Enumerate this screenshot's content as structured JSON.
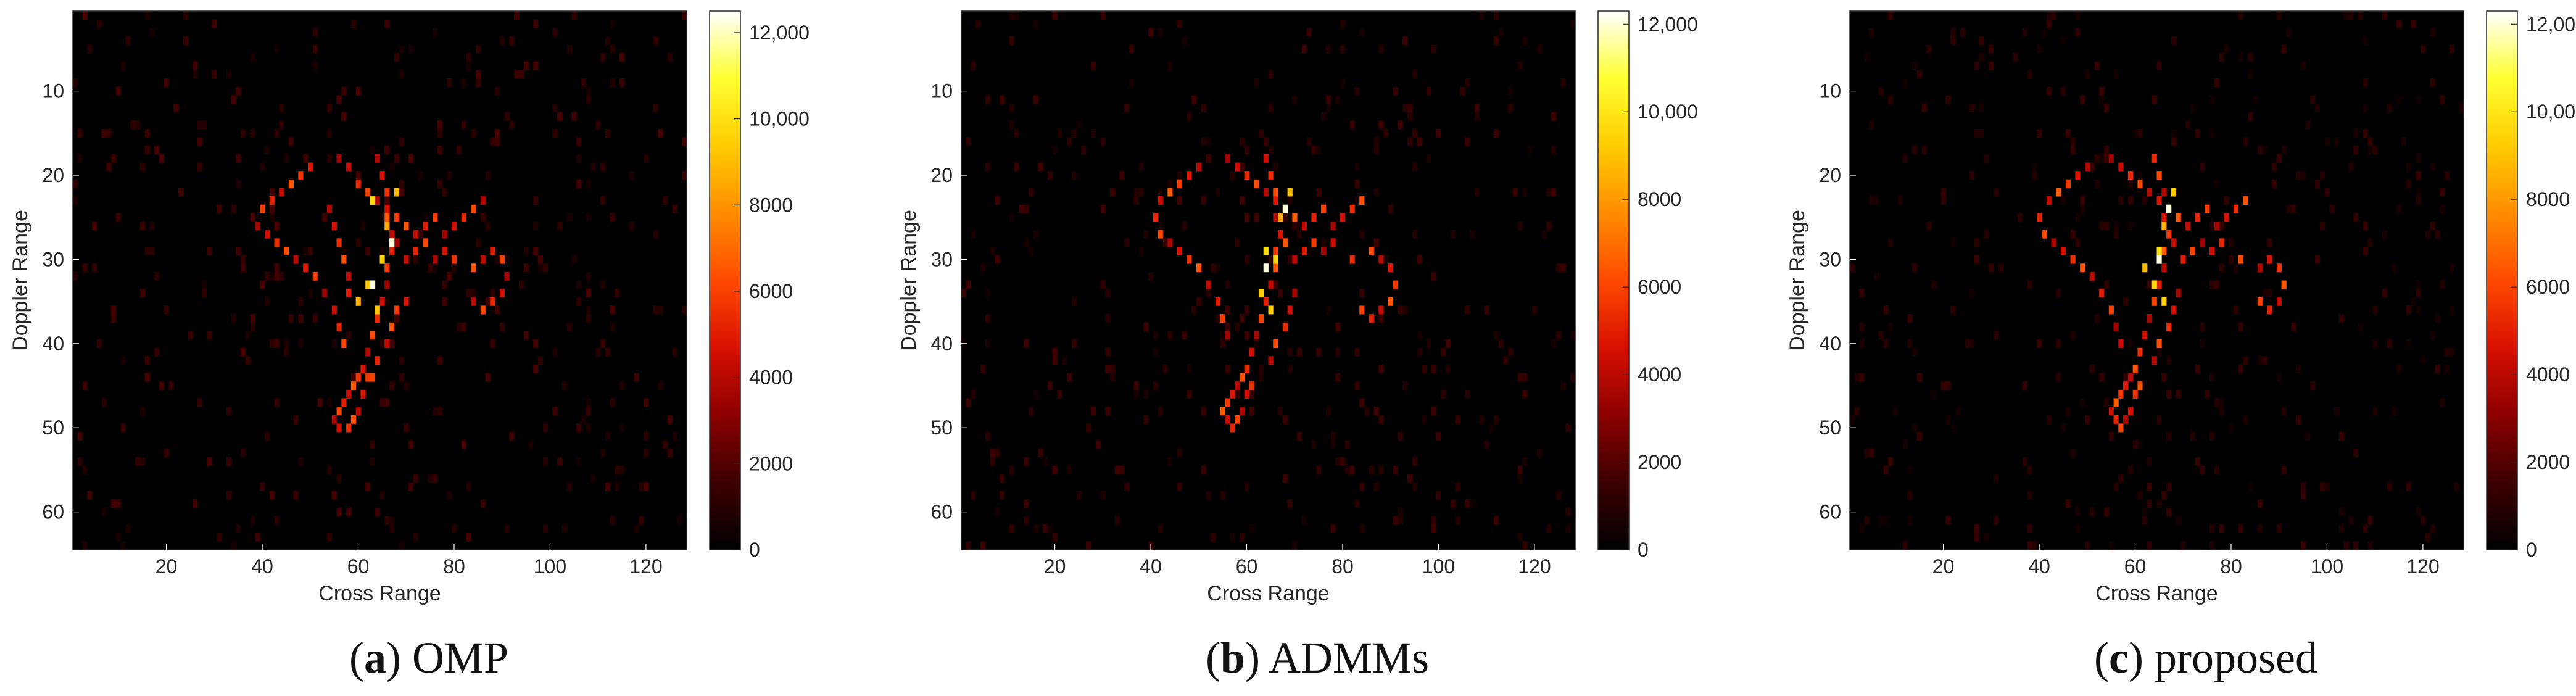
{
  "colormap": [
    "#000000",
    "#3d0000",
    "#8c0000",
    "#d81000",
    "#ff4a00",
    "#ff8c00",
    "#ffcc00",
    "#ffff30",
    "#ffffff"
  ],
  "chart_data": [
    {
      "type": "heatmap",
      "panel": "a",
      "caption_letter": "a",
      "caption_text": "OMP",
      "xlabel": "Cross Range",
      "ylabel": "Doppler Range",
      "xlim": [
        1,
        128
      ],
      "ylim": [
        1,
        64
      ],
      "xticks": [
        20,
        40,
        60,
        80,
        100,
        120
      ],
      "yticks": [
        10,
        20,
        30,
        40,
        50,
        60
      ],
      "colorbar_range": [
        0,
        12500
      ],
      "colorbar_ticks": [
        0,
        2000,
        4000,
        6000,
        8000,
        10000,
        12000
      ],
      "colorbar_tick_labels": [
        "0",
        "2000",
        "4000",
        "6000",
        "8000",
        "10,000",
        "12,000"
      ],
      "background_noise_max": 1800,
      "strong_points": [
        [
          56,
          18
        ],
        [
          58,
          19
        ],
        [
          60,
          21
        ],
        [
          62,
          22
        ],
        [
          64,
          23
        ],
        [
          66,
          24
        ],
        [
          68,
          25
        ],
        [
          70,
          26
        ],
        [
          72,
          27
        ],
        [
          74,
          26
        ],
        [
          76,
          25
        ],
        [
          78,
          27
        ],
        [
          80,
          26
        ],
        [
          82,
          25
        ],
        [
          84,
          24
        ],
        [
          86,
          23
        ],
        [
          50,
          19
        ],
        [
          48,
          20
        ],
        [
          46,
          21
        ],
        [
          44,
          22
        ],
        [
          42,
          23
        ],
        [
          40,
          24
        ],
        [
          39,
          26
        ],
        [
          41,
          27
        ],
        [
          43,
          28
        ],
        [
          45,
          29
        ],
        [
          47,
          30
        ],
        [
          49,
          31
        ],
        [
          51,
          32
        ],
        [
          53,
          34
        ],
        [
          55,
          36
        ],
        [
          56,
          38
        ],
        [
          57,
          40
        ],
        [
          64,
          18
        ],
        [
          65,
          20
        ],
        [
          66,
          22
        ],
        [
          66,
          25
        ],
        [
          67,
          27
        ],
        [
          67,
          29
        ],
        [
          66,
          31
        ],
        [
          66,
          33
        ],
        [
          65,
          35
        ],
        [
          64,
          37
        ],
        [
          63,
          39
        ],
        [
          62,
          41
        ],
        [
          61,
          43
        ],
        [
          60,
          44
        ],
        [
          59,
          45
        ],
        [
          58,
          46
        ],
        [
          57,
          47
        ],
        [
          56,
          48
        ],
        [
          55,
          49
        ],
        [
          56,
          50
        ],
        [
          58,
          50
        ],
        [
          59,
          49
        ],
        [
          60,
          48
        ],
        [
          61,
          46
        ],
        [
          62,
          44
        ],
        [
          68,
          28
        ],
        [
          70,
          30
        ],
        [
          72,
          29
        ],
        [
          74,
          28
        ],
        [
          76,
          30
        ],
        [
          78,
          29
        ],
        [
          80,
          30
        ],
        [
          84,
          31
        ],
        [
          86,
          30
        ],
        [
          88,
          29
        ],
        [
          90,
          30
        ],
        [
          91,
          32
        ],
        [
          90,
          34
        ],
        [
          88,
          35
        ],
        [
          86,
          36
        ],
        [
          84,
          35
        ],
        [
          70,
          35
        ],
        [
          68,
          36
        ],
        [
          67,
          38
        ],
        [
          66,
          40
        ],
        [
          64,
          42
        ],
        [
          63,
          44
        ],
        [
          54,
          24
        ],
        [
          55,
          26
        ],
        [
          56,
          28
        ],
        [
          57,
          30
        ],
        [
          58,
          32
        ],
        [
          58,
          34
        ]
      ],
      "hot_points": [
        [
          66,
          26
        ],
        [
          63,
          23
        ],
        [
          65,
          30
        ],
        [
          62,
          33
        ],
        [
          64,
          36
        ],
        [
          68,
          22
        ],
        [
          60,
          35
        ]
      ],
      "peak_points": [
        [
          63,
          33
        ],
        [
          67,
          28
        ]
      ]
    },
    {
      "type": "heatmap",
      "panel": "b",
      "caption_letter": "b",
      "caption_text": "ADMMs",
      "xlabel": "Cross Range",
      "ylabel": "Doppler Range",
      "xlim": [
        1,
        128
      ],
      "ylim": [
        1,
        64
      ],
      "xticks": [
        20,
        40,
        60,
        80,
        100,
        120
      ],
      "yticks": [
        10,
        20,
        30,
        40,
        50,
        60
      ],
      "colorbar_range": [
        0,
        12300
      ],
      "colorbar_ticks": [
        0,
        2000,
        4000,
        6000,
        8000,
        10000,
        12000
      ],
      "colorbar_tick_labels": [
        "0",
        "2000",
        "4000",
        "6000",
        "8000",
        "10,000",
        "12,000"
      ],
      "background_noise_max": 1600,
      "strong_points": [
        [
          56,
          18
        ],
        [
          58,
          19
        ],
        [
          60,
          20
        ],
        [
          62,
          21
        ],
        [
          64,
          22
        ],
        [
          66,
          23
        ],
        [
          68,
          24
        ],
        [
          70,
          25
        ],
        [
          72,
          26
        ],
        [
          74,
          25
        ],
        [
          76,
          24
        ],
        [
          78,
          26
        ],
        [
          80,
          25
        ],
        [
          82,
          24
        ],
        [
          84,
          23
        ],
        [
          50,
          19
        ],
        [
          48,
          20
        ],
        [
          46,
          21
        ],
        [
          44,
          22
        ],
        [
          42,
          23
        ],
        [
          41,
          25
        ],
        [
          42,
          27
        ],
        [
          44,
          28
        ],
        [
          46,
          29
        ],
        [
          48,
          30
        ],
        [
          50,
          31
        ],
        [
          52,
          33
        ],
        [
          54,
          35
        ],
        [
          55,
          37
        ],
        [
          56,
          39
        ],
        [
          64,
          18
        ],
        [
          65,
          20
        ],
        [
          66,
          22
        ],
        [
          66,
          25
        ],
        [
          67,
          27
        ],
        [
          66,
          29
        ],
        [
          66,
          31
        ],
        [
          65,
          33
        ],
        [
          64,
          35
        ],
        [
          63,
          37
        ],
        [
          62,
          39
        ],
        [
          61,
          41
        ],
        [
          60,
          43
        ],
        [
          59,
          44
        ],
        [
          58,
          45
        ],
        [
          57,
          46
        ],
        [
          56,
          47
        ],
        [
          55,
          48
        ],
        [
          56,
          49
        ],
        [
          57,
          50
        ],
        [
          58,
          49
        ],
        [
          59,
          48
        ],
        [
          60,
          46
        ],
        [
          61,
          45
        ],
        [
          68,
          28
        ],
        [
          70,
          30
        ],
        [
          72,
          29
        ],
        [
          74,
          28
        ],
        [
          76,
          29
        ],
        [
          78,
          28
        ],
        [
          82,
          30
        ],
        [
          86,
          29
        ],
        [
          88,
          30
        ],
        [
          90,
          31
        ],
        [
          91,
          33
        ],
        [
          90,
          35
        ],
        [
          88,
          36
        ],
        [
          86,
          37
        ],
        [
          84,
          36
        ],
        [
          70,
          34
        ],
        [
          69,
          36
        ],
        [
          68,
          38
        ],
        [
          66,
          40
        ],
        [
          65,
          42
        ]
      ],
      "hot_points": [
        [
          67,
          25
        ],
        [
          64,
          29
        ],
        [
          66,
          30
        ],
        [
          63,
          34
        ],
        [
          65,
          36
        ],
        [
          69,
          22
        ]
      ],
      "peak_points": [
        [
          64,
          31
        ],
        [
          68,
          24
        ]
      ]
    },
    {
      "type": "heatmap",
      "panel": "c",
      "caption_letter": "c",
      "caption_text": "proposed",
      "xlabel": "Cross Range",
      "ylabel": "Doppler Range",
      "xlim": [
        1,
        128
      ],
      "ylim": [
        1,
        64
      ],
      "xticks": [
        20,
        40,
        60,
        80,
        100,
        120
      ],
      "yticks": [
        10,
        20,
        30,
        40,
        50,
        60
      ],
      "colorbar_range": [
        0,
        12300
      ],
      "colorbar_ticks": [
        0,
        2000,
        4000,
        6000,
        8000,
        10000,
        12000
      ],
      "colorbar_tick_labels": [
        "0",
        "2000",
        "4000",
        "6000",
        "8000",
        "10,000",
        "12,000"
      ],
      "background_noise_max": 1400,
      "strong_points": [
        [
          55,
          18
        ],
        [
          57,
          19
        ],
        [
          59,
          20
        ],
        [
          61,
          21
        ],
        [
          63,
          22
        ],
        [
          65,
          23
        ],
        [
          67,
          24
        ],
        [
          69,
          25
        ],
        [
          71,
          26
        ],
        [
          73,
          25
        ],
        [
          75,
          24
        ],
        [
          77,
          26
        ],
        [
          79,
          25
        ],
        [
          81,
          24
        ],
        [
          83,
          23
        ],
        [
          50,
          19
        ],
        [
          48,
          20
        ],
        [
          46,
          21
        ],
        [
          44,
          22
        ],
        [
          42,
          23
        ],
        [
          40,
          25
        ],
        [
          41,
          27
        ],
        [
          43,
          28
        ],
        [
          45,
          29
        ],
        [
          47,
          30
        ],
        [
          49,
          31
        ],
        [
          51,
          32
        ],
        [
          53,
          34
        ],
        [
          55,
          36
        ],
        [
          56,
          38
        ],
        [
          57,
          40
        ],
        [
          64,
          18
        ],
        [
          65,
          20
        ],
        [
          66,
          22
        ],
        [
          66,
          25
        ],
        [
          67,
          27
        ],
        [
          66,
          29
        ],
        [
          66,
          31
        ],
        [
          65,
          33
        ],
        [
          64,
          35
        ],
        [
          63,
          37
        ],
        [
          62,
          39
        ],
        [
          61,
          41
        ],
        [
          60,
          43
        ],
        [
          59,
          44
        ],
        [
          58,
          45
        ],
        [
          57,
          46
        ],
        [
          56,
          47
        ],
        [
          55,
          48
        ],
        [
          56,
          49
        ],
        [
          57,
          50
        ],
        [
          58,
          49
        ],
        [
          59,
          48
        ],
        [
          60,
          46
        ],
        [
          61,
          45
        ],
        [
          68,
          28
        ],
        [
          70,
          30
        ],
        [
          72,
          29
        ],
        [
          74,
          28
        ],
        [
          76,
          29
        ],
        [
          78,
          28
        ],
        [
          82,
          30
        ],
        [
          86,
          31
        ],
        [
          88,
          30
        ],
        [
          90,
          31
        ],
        [
          91,
          33
        ],
        [
          90,
          35
        ],
        [
          88,
          36
        ],
        [
          86,
          35
        ],
        [
          69,
          34
        ],
        [
          68,
          36
        ],
        [
          67,
          38
        ],
        [
          65,
          40
        ],
        [
          64,
          42
        ]
      ],
      "hot_points": [
        [
          66,
          26
        ],
        [
          65,
          29
        ],
        [
          64,
          33
        ],
        [
          66,
          35
        ],
        [
          68,
          22
        ],
        [
          62,
          31
        ]
      ],
      "peak_points": [
        [
          65,
          30
        ],
        [
          67,
          24
        ]
      ]
    }
  ]
}
